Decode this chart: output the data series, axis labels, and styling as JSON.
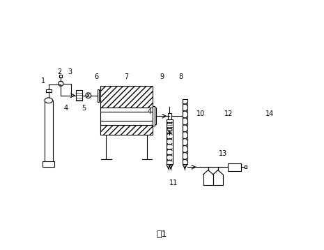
{
  "title": "图1",
  "bg_color": "#ffffff",
  "line_color": "#000000",
  "figsize": [
    4.65,
    3.58
  ],
  "dpi": 100
}
